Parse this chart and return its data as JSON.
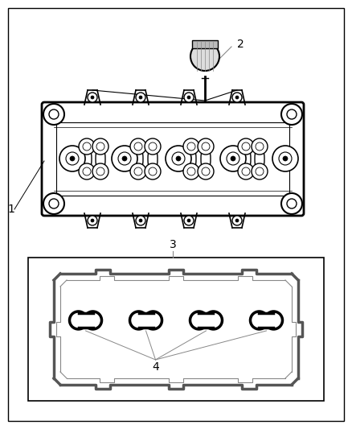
{
  "bg_color": "#ffffff",
  "line_color": "#000000",
  "gray_light": "#c8c8c8",
  "gray_mid": "#999999",
  "label1": "1",
  "label2": "2",
  "label3": "3",
  "label4": "4"
}
